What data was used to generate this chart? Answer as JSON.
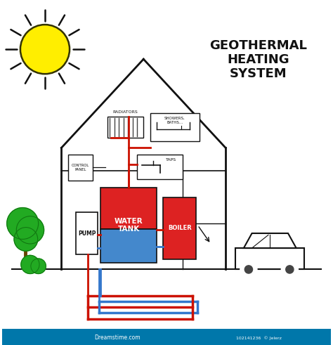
{
  "bg_color": "#ffffff",
  "title": "GEOTHERMAL\nHEATING\nSYSTEM",
  "title_fontsize": 13,
  "sun_color": "#FFEE00",
  "sun_edge_color": "#333300",
  "sun_ray_color": "#111111",
  "house_color": "#111111",
  "pipe_red": "#cc1100",
  "pipe_blue": "#3377cc",
  "pipe_black": "#111111",
  "water_tank_red": "#dd2222",
  "water_tank_blue": "#4488cc",
  "boiler_red": "#dd2222",
  "tree_green": "#22aa22",
  "tree_dark": "#117711",
  "trunk_color": "#664400",
  "label_pump": "PUMP",
  "label_water_tank": "WATER\nTANK",
  "label_boiler": "BOILER",
  "label_radiators": "RADIATORS",
  "label_showers": "SHOWERS,\nBATHS...",
  "label_taps": "TAPS",
  "label_control": "CONTROL\nPANEL"
}
